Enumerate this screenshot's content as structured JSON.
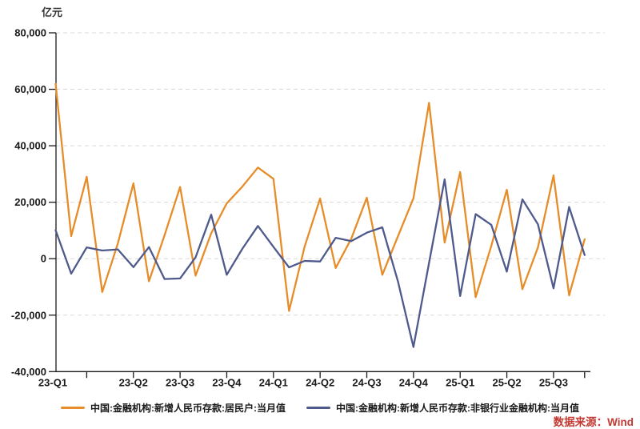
{
  "unit_label": "亿元",
  "source_note": "数据来源：Wind",
  "legend": [
    {
      "label": "中国:金融机构:新增人民币存款:居民户:当月值",
      "color": "#E68C28"
    },
    {
      "label": "中国:金融机构:新增人民币存款:非银行业金融机构:当月值",
      "color": "#4F5A8C"
    }
  ],
  "colors": {
    "axis": "#1a1a1a",
    "grid": "#d8d8d8",
    "tick_text": "#1a1a1a",
    "source_red": "#c23a32",
    "background": "#ffffff"
  },
  "chart_data": {
    "type": "line",
    "title": "",
    "ylabel": "亿元",
    "xlabel": "",
    "ylim": [
      -40000,
      80000
    ],
    "grid": "horizontal dashed",
    "legend_position": "bottom",
    "x": [
      "2023-01",
      "2023-02",
      "2023-03",
      "2023-04",
      "2023-05",
      "2023-06",
      "2023-07",
      "2023-08",
      "2023-09",
      "2023-10",
      "2023-11",
      "2023-12",
      "2024-01",
      "2024-02",
      "2024-03",
      "2024-04",
      "2024-05",
      "2024-06",
      "2024-07",
      "2024-08",
      "2024-09",
      "2024-10",
      "2024-11",
      "2024-12",
      "2025-01",
      "2025-02",
      "2025-03",
      "2025-04",
      "2025-05",
      "2025-06",
      "2025-07",
      "2025-08",
      "2025-09",
      "2025-10",
      "2025-11"
    ],
    "x_tick_labels": [
      "23-Q1",
      "23-Q2",
      "23-Q3",
      "23-Q4",
      "24-Q1",
      "24-Q2",
      "24-Q3",
      "24-Q4",
      "25-Q1",
      "25-Q2",
      "25-Q3"
    ],
    "y_ticks": [
      80000,
      60000,
      40000,
      20000,
      0,
      -20000,
      -40000
    ],
    "y_tick_labels": [
      "80,000",
      "60,000",
      "40,000",
      "20,000",
      "0",
      "-20,000",
      "-40,000"
    ],
    "series": [
      {
        "name": "中国:金融机构:新增人民币存款:居民户:当月值",
        "color": "#E68C28",
        "values": [
          62000,
          8000,
          29000,
          -11800,
          5400,
          26700,
          -8000,
          8300,
          25400,
          -6000,
          9000,
          19600,
          25500,
          32300,
          28300,
          -18500,
          4200,
          21300,
          -3300,
          7100,
          21600,
          -5700,
          7900,
          21400,
          55200,
          5700,
          30700,
          -13600,
          4500,
          24400,
          -10800,
          4000,
          29500,
          -13000,
          6900
        ]
      },
      {
        "name": "中国:金融机构:新增人民币存款:非银行业金融机构:当月值",
        "color": "#4F5A8C",
        "values": [
          10100,
          -5300,
          4000,
          2900,
          3300,
          -3000,
          4100,
          -7200,
          -7000,
          500,
          15600,
          -5700,
          3500,
          11600,
          4200,
          -3100,
          -800,
          -1000,
          7400,
          6200,
          9200,
          11100,
          -8000,
          -31300,
          -1500,
          28100,
          -13200,
          15800,
          12000,
          -4600,
          21000,
          12200,
          -10500,
          18300,
          1300
        ]
      }
    ]
  }
}
